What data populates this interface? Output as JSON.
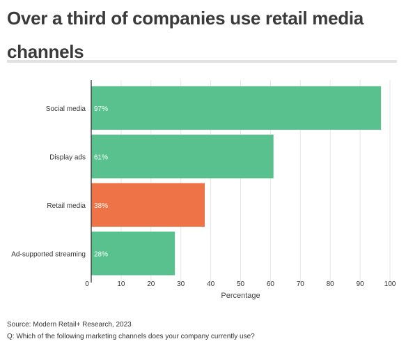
{
  "title": "Over a third of companies use retail media channels",
  "source": "Source: Modern Retail+ Research, 2023",
  "question": "Q: Which of the following marketing channels does your company currently use?",
  "chart_data": {
    "type": "bar",
    "orientation": "horizontal",
    "categories": [
      "Social media",
      "Display ads",
      "Retail media",
      "Ad-supported streaming"
    ],
    "values": [
      97,
      61,
      38,
      28
    ],
    "data_labels": [
      "97%",
      "61%",
      "38%",
      "28%"
    ],
    "colors": [
      "#58c18e",
      "#58c18e",
      "#ee7447",
      "#58c18e"
    ],
    "xlabel": "Percentage",
    "ylabel": "",
    "xlim": [
      0,
      100
    ],
    "xticks": [
      0,
      10,
      20,
      30,
      40,
      50,
      60,
      70,
      80,
      90,
      100
    ],
    "grid": true,
    "legend": "none"
  }
}
